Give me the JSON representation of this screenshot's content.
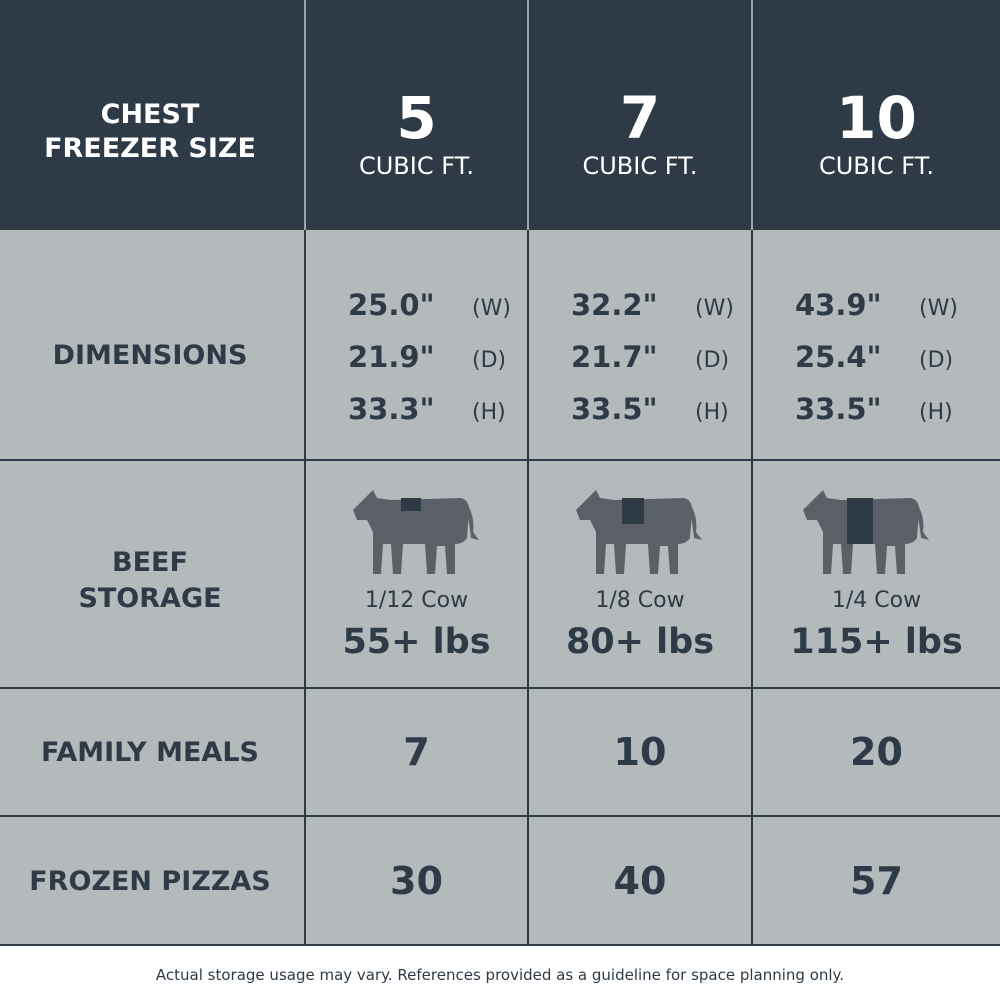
{
  "header": {
    "label": [
      "CHEST",
      "FREEZER SIZE"
    ],
    "columns": [
      {
        "size": "5",
        "unit": "CUBIC FT."
      },
      {
        "size": "7",
        "unit": "CUBIC FT."
      },
      {
        "size": "10",
        "unit": "CUBIC FT."
      }
    ]
  },
  "rows": {
    "dimensions": {
      "label": "DIMENSIONS",
      "cells": [
        [
          {
            "value": "25.0\"",
            "axis": "(W)"
          },
          {
            "value": "21.9\"",
            "axis": "(D)"
          },
          {
            "value": "33.3\"",
            "axis": "(H)"
          }
        ],
        [
          {
            "value": "32.2\"",
            "axis": "(W)"
          },
          {
            "value": "21.7\"",
            "axis": "(D)"
          },
          {
            "value": "33.5\"",
            "axis": "(H)"
          }
        ],
        [
          {
            "value": "43.9\"",
            "axis": "(W)"
          },
          {
            "value": "25.4\"",
            "axis": "(D)"
          },
          {
            "value": "33.5\"",
            "axis": "(H)"
          }
        ]
      ]
    },
    "beef": {
      "label": [
        "BEEF",
        "STORAGE"
      ],
      "cells": [
        {
          "fraction": "1/12 Cow",
          "weight": "55+ lbs"
        },
        {
          "fraction": "1/8 Cow",
          "weight": "80+ lbs"
        },
        {
          "fraction": "1/4 Cow",
          "weight": "115+ lbs"
        }
      ]
    },
    "meals": {
      "label": "FAMILY MEALS",
      "cells": [
        "7",
        "10",
        "20"
      ]
    },
    "pizzas": {
      "label": "FROZEN PIZZAS",
      "cells": [
        "30",
        "40",
        "57"
      ]
    }
  },
  "footnote": "Actual storage usage may vary. References provided as a guideline for space planning only."
}
